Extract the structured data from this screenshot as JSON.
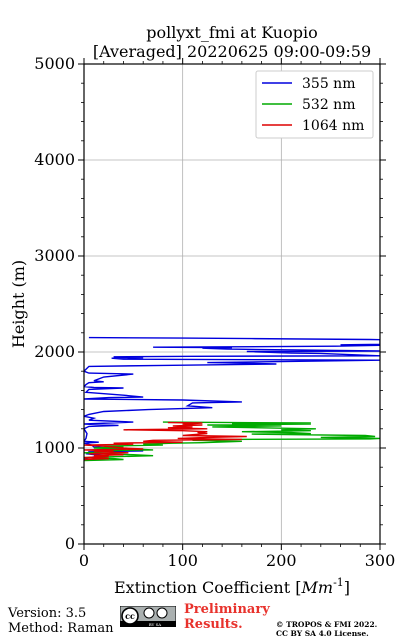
{
  "chart_data": {
    "type": "line",
    "title": "pollyxt_fmi at Kuopio",
    "subtitle": "[Averaged] 20220625 09:00-09:59",
    "xlabel": "Extinction Coefficient [Mm^-1]",
    "ylabel": "Height (m)",
    "xlim": [
      0,
      300
    ],
    "ylim": [
      0,
      5000
    ],
    "xticks": [
      "0",
      "100",
      "200",
      "300"
    ],
    "yticks": [
      "0",
      "1000",
      "2000",
      "3000",
      "4000",
      "5000"
    ],
    "grid": true,
    "legend_position": "top-right",
    "series": [
      {
        "name": "355 nm",
        "color": "#0000dd",
        "points": [
          [
            5,
            2150
          ],
          [
            100,
            2145
          ],
          [
            170,
            2140
          ],
          [
            290,
            2130
          ],
          [
            300,
            2128
          ],
          [
            300,
            2080
          ],
          [
            260,
            2075
          ],
          [
            300,
            2070
          ],
          [
            255,
            2060
          ],
          [
            70,
            2050
          ],
          [
            150,
            2045
          ],
          [
            120,
            2040
          ],
          [
            145,
            2030
          ],
          [
            300,
            2010
          ],
          [
            165,
            2005
          ],
          [
            210,
            1990
          ],
          [
            240,
            1985
          ],
          [
            300,
            1960
          ],
          [
            110,
            1955
          ],
          [
            30,
            1950
          ],
          [
            60,
            1940
          ],
          [
            28,
            1935
          ],
          [
            40,
            1925
          ],
          [
            300,
            1915
          ],
          [
            200,
            1900
          ],
          [
            125,
            1890
          ],
          [
            155,
            1885
          ],
          [
            195,
            1875
          ],
          [
            80,
            1860
          ],
          [
            5,
            1850
          ],
          [
            2,
            1820
          ],
          [
            0,
            1800
          ],
          [
            5,
            1780
          ],
          [
            50,
            1770
          ],
          [
            20,
            1740
          ],
          [
            10,
            1700
          ],
          [
            20,
            1690
          ],
          [
            5,
            1680
          ],
          [
            2,
            1660
          ],
          [
            0,
            1640
          ],
          [
            10,
            1630
          ],
          [
            40,
            1625
          ],
          [
            5,
            1610
          ],
          [
            2,
            1580
          ],
          [
            40,
            1550
          ],
          [
            60,
            1530
          ],
          [
            25,
            1525
          ],
          [
            0,
            1510
          ],
          [
            100,
            1500
          ],
          [
            160,
            1480
          ],
          [
            110,
            1470
          ],
          [
            105,
            1440
          ],
          [
            130,
            1420
          ],
          [
            65,
            1400
          ],
          [
            20,
            1380
          ],
          [
            5,
            1350
          ],
          [
            0,
            1330
          ],
          [
            10,
            1310
          ],
          [
            5,
            1290
          ],
          [
            50,
            1270
          ],
          [
            0,
            1250
          ],
          [
            35,
            1235
          ],
          [
            5,
            1225
          ],
          [
            0,
            1200
          ],
          [
            3,
            1150
          ],
          [
            2,
            1100
          ],
          [
            0,
            1070
          ],
          [
            15,
            1060
          ],
          [
            0,
            1050
          ],
          [
            8,
            1030
          ],
          [
            10,
            1010
          ],
          [
            40,
            995
          ],
          [
            20,
            980
          ],
          [
            60,
            970
          ],
          [
            5,
            960
          ],
          [
            3,
            940
          ],
          [
            20,
            920
          ],
          [
            5,
            900
          ],
          [
            0,
            880
          ]
        ]
      },
      {
        "name": "532 nm",
        "color": "#00aa00",
        "points": [
          [
            80,
            1270
          ],
          [
            230,
            1260
          ],
          [
            150,
            1255
          ],
          [
            230,
            1250
          ],
          [
            125,
            1240
          ],
          [
            200,
            1230
          ],
          [
            130,
            1220
          ],
          [
            235,
            1200
          ],
          [
            200,
            1190
          ],
          [
            230,
            1180
          ],
          [
            160,
            1170
          ],
          [
            210,
            1160
          ],
          [
            230,
            1150
          ],
          [
            170,
            1145
          ],
          [
            205,
            1140
          ],
          [
            285,
            1130
          ],
          [
            295,
            1120
          ],
          [
            240,
            1110
          ],
          [
            300,
            1100
          ],
          [
            290,
            1095
          ],
          [
            140,
            1090
          ],
          [
            110,
            1080
          ],
          [
            160,
            1070
          ],
          [
            120,
            1055
          ],
          [
            90,
            1050
          ],
          [
            60,
            1040
          ],
          [
            80,
            1030
          ],
          [
            20,
            1020
          ],
          [
            40,
            1010
          ],
          [
            10,
            1000
          ],
          [
            50,
            990
          ],
          [
            70,
            980
          ],
          [
            10,
            970
          ],
          [
            30,
            960
          ],
          [
            0,
            950
          ],
          [
            15,
            940
          ],
          [
            50,
            930
          ],
          [
            70,
            920
          ],
          [
            35,
            910
          ],
          [
            0,
            900
          ],
          [
            30,
            890
          ],
          [
            40,
            880
          ],
          [
            0,
            870
          ]
        ]
      },
      {
        "name": "1064 nm",
        "color": "#dd0000",
        "points": [
          [
            85,
            1265
          ],
          [
            120,
            1260
          ],
          [
            100,
            1250
          ],
          [
            120,
            1240
          ],
          [
            90,
            1230
          ],
          [
            110,
            1220
          ],
          [
            85,
            1210
          ],
          [
            125,
            1200
          ],
          [
            40,
            1190
          ],
          [
            100,
            1180
          ],
          [
            125,
            1170
          ],
          [
            115,
            1160
          ],
          [
            125,
            1150
          ],
          [
            100,
            1130
          ],
          [
            165,
            1120
          ],
          [
            125,
            1110
          ],
          [
            95,
            1100
          ],
          [
            160,
            1090
          ],
          [
            70,
            1080
          ],
          [
            60,
            1070
          ],
          [
            100,
            1060
          ],
          [
            30,
            1050
          ],
          [
            50,
            1040
          ],
          [
            0,
            1030
          ],
          [
            20,
            1020
          ],
          [
            40,
            1000
          ],
          [
            60,
            990
          ],
          [
            0,
            980
          ],
          [
            30,
            970
          ],
          [
            10,
            960
          ],
          [
            45,
            950
          ],
          [
            5,
            940
          ],
          [
            40,
            930
          ],
          [
            10,
            920
          ],
          [
            25,
            910
          ],
          [
            0,
            900
          ],
          [
            25,
            890
          ],
          [
            0,
            880
          ]
        ]
      }
    ]
  },
  "footer": {
    "version": "Version: 3.5",
    "method": "Method: Raman",
    "preliminary_line1": "Preliminary",
    "preliminary_line2": "Results.",
    "copyright_line1": "© TROPOS & FMI 2022.",
    "copyright_line2": "CC BY SA 4.0 License.",
    "badge_text": "BY SA",
    "badge_cc": "cc"
  },
  "colors": {
    "preliminary": "#e8322c",
    "grid": "#b0b0b0"
  }
}
